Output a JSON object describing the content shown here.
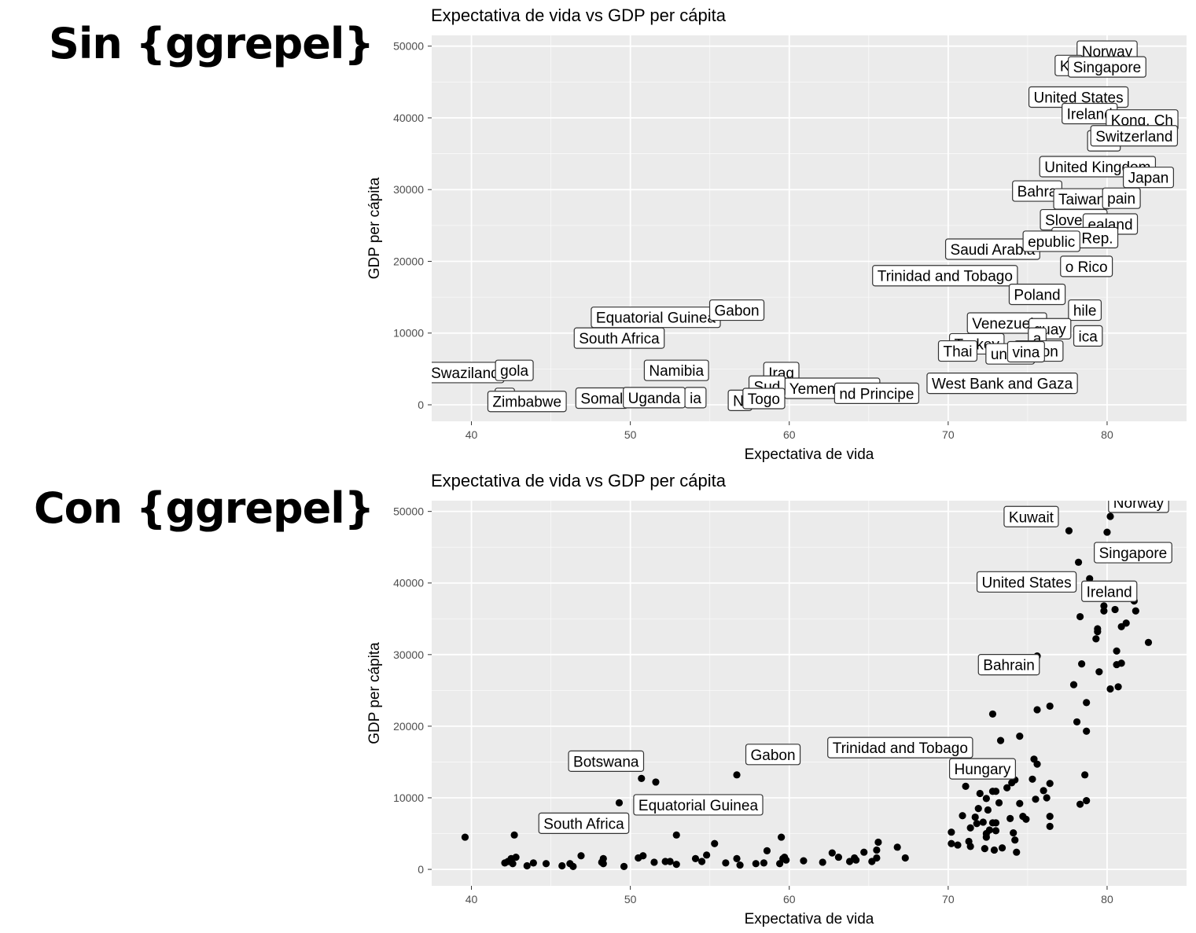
{
  "headings": {
    "top": "Sin {ggrepel}",
    "bottom": "Con {ggrepel}"
  },
  "colors": {
    "panel": "#ebebeb",
    "grid": "#ffffff",
    "point": "#000000",
    "label_border": "#333333",
    "text": "#000000",
    "tick_text": "#4d4d4d"
  },
  "chart_data": [
    {
      "type": "scatter",
      "title": "Expectativa de vida vs GDP per cápita",
      "xlabel": "Expectativa de vida",
      "ylabel": "GDP per cápita",
      "xlim": [
        37.5,
        85
      ],
      "ylim": [
        -2300,
        51500
      ],
      "x_ticks": [
        40,
        50,
        60,
        70,
        80
      ],
      "x_tick_labels": [
        "40",
        "50",
        "60",
        "70",
        "80"
      ],
      "y_ticks": [
        0,
        10000,
        20000,
        30000,
        40000,
        50000
      ],
      "y_tick_labels": [
        "0",
        "10000",
        "20000",
        "30000",
        "40000",
        "50000"
      ],
      "grid": true,
      "show_points": false,
      "labels": [
        {
          "text": "Norway",
          "x": 80,
          "y": 49300
        },
        {
          "text": "Ku",
          "x": 77.6,
          "y": 47300
        },
        {
          "text": "Singapore",
          "x": 80,
          "y": 47100
        },
        {
          "text": "United States",
          "x": 78.2,
          "y": 42900
        },
        {
          "text": "Ireland",
          "x": 78.9,
          "y": 40600
        },
        {
          "text": "Kong, Ch",
          "x": 82.2,
          "y": 39700
        },
        {
          "text": "Net",
          "x": 79.8,
          "y": 36800
        },
        {
          "text": "Switzerland",
          "x": 81.7,
          "y": 37500
        },
        {
          "text": "United Kingdom",
          "x": 79.4,
          "y": 33200
        },
        {
          "text": "Japan",
          "x": 82.6,
          "y": 31700
        },
        {
          "text": "Bahra",
          "x": 75.6,
          "y": 29800
        },
        {
          "text": "Taiwan",
          "x": 78.4,
          "y": 28700
        },
        {
          "text": "pain",
          "x": 80.9,
          "y": 28800
        },
        {
          "text": "Slovenia",
          "x": 77.9,
          "y": 25800
        },
        {
          "text": "ealand",
          "x": 80.2,
          "y": 25200
        },
        {
          "text": "ea, Rep.",
          "x": 78.6,
          "y": 23300
        },
        {
          "text": "Saudi Arabia",
          "x": 72.8,
          "y": 21700
        },
        {
          "text": "epublic",
          "x": 76.5,
          "y": 22800
        },
        {
          "text": "o Rico",
          "x": 78.7,
          "y": 19300
        },
        {
          "text": "Trinidad and Tobago",
          "x": 69.8,
          "y": 18000
        },
        {
          "text": "Poland",
          "x": 75.6,
          "y": 15400
        },
        {
          "text": "hile",
          "x": 78.6,
          "y": 13200
        },
        {
          "text": "Equatorial Guinea",
          "x": 51.6,
          "y": 12200
        },
        {
          "text": "Gabon",
          "x": 56.7,
          "y": 13200
        },
        {
          "text": "Venezuela",
          "x": 73.7,
          "y": 11400
        },
        {
          "text": "guay",
          "x": 76.4,
          "y": 10600
        },
        {
          "text": "ica",
          "x": 78.8,
          "y": 9600
        },
        {
          "text": "South Africa",
          "x": 49.3,
          "y": 9300
        },
        {
          "text": "Turkey",
          "x": 71.8,
          "y": 8500
        },
        {
          "text": "a",
          "x": 75.6,
          "y": 9300
        },
        {
          "text": "Union",
          "x": 75.7,
          "y": 7500
        },
        {
          "text": "Thai",
          "x": 70.6,
          "y": 7500
        },
        {
          "text": "unisia",
          "x": 73.9,
          "y": 7100
        },
        {
          "text": "vina",
          "x": 74.9,
          "y": 7400
        },
        {
          "text": "Namibia",
          "x": 52.9,
          "y": 4800
        },
        {
          "text": "Iraq",
          "x": 59.5,
          "y": 4500
        },
        {
          "text": "Swaziland",
          "x": 39.6,
          "y": 4500
        },
        {
          "text": "gola",
          "x": 42.7,
          "y": 4800
        },
        {
          "text": "West Bank and Gaza",
          "x": 73.4,
          "y": 3000
        },
        {
          "text": "Yemen, Rep.",
          "x": 62.7,
          "y": 2300
        },
        {
          "text": "nd Principe",
          "x": 65.5,
          "y": 1600
        },
        {
          "text": "S",
          "x": 42.1,
          "y": 900
        },
        {
          "text": "Zimbabwe",
          "x": 43.5,
          "y": 470
        },
        {
          "text": "Somal",
          "x": 48.2,
          "y": 930
        },
        {
          "text": "Uganda",
          "x": 51.5,
          "y": 1000
        },
        {
          "text": "ia",
          "x": 54.1,
          "y": 1000
        },
        {
          "text": "Sud",
          "x": 58.6,
          "y": 2600
        },
        {
          "text": "Ni",
          "x": 56.9,
          "y": 620
        },
        {
          "text": "Togo",
          "x": 58.4,
          "y": 880
        }
      ]
    },
    {
      "type": "scatter",
      "title": "Expectativa de vida vs GDP per cápita",
      "xlabel": "Expectativa de vida",
      "ylabel": "GDP per cápita",
      "xlim": [
        37.5,
        85
      ],
      "ylim": [
        -2300,
        51500
      ],
      "x_ticks": [
        40,
        50,
        60,
        70,
        80
      ],
      "x_tick_labels": [
        "40",
        "50",
        "60",
        "70",
        "80"
      ],
      "y_ticks": [
        0,
        10000,
        20000,
        30000,
        40000,
        50000
      ],
      "y_tick_labels": [
        "0",
        "10000",
        "20000",
        "30000",
        "40000",
        "50000"
      ],
      "grid": true,
      "show_points": true,
      "points": [
        [
          39.6,
          4500
        ],
        [
          42.1,
          900
        ],
        [
          42.3,
          1100
        ],
        [
          42.5,
          1500
        ],
        [
          42.6,
          800
        ],
        [
          42.7,
          4800
        ],
        [
          42.8,
          1700
        ],
        [
          43.5,
          500
        ],
        [
          43.9,
          900
        ],
        [
          44.7,
          800
        ],
        [
          45.7,
          500
        ],
        [
          46.2,
          800
        ],
        [
          46.4,
          400
        ],
        [
          46.9,
          1900
        ],
        [
          48.2,
          1000
        ],
        [
          48.3,
          1500
        ],
        [
          48.3,
          800
        ],
        [
          49.3,
          9300
        ],
        [
          49.6,
          400
        ],
        [
          50.5,
          1600
        ],
        [
          50.7,
          12700
        ],
        [
          50.8,
          1900
        ],
        [
          51.5,
          1000
        ],
        [
          51.6,
          12200
        ],
        [
          52.2,
          1100
        ],
        [
          52.5,
          1100
        ],
        [
          52.9,
          4800
        ],
        [
          52.9,
          700
        ],
        [
          54.1,
          1500
        ],
        [
          54.5,
          1100
        ],
        [
          54.8,
          2000
        ],
        [
          55.3,
          3600
        ],
        [
          56.0,
          900
        ],
        [
          56.7,
          1500
        ],
        [
          56.7,
          13200
        ],
        [
          56.9,
          600
        ],
        [
          57.9,
          800
        ],
        [
          58.4,
          900
        ],
        [
          58.6,
          2600
        ],
        [
          59.4,
          800
        ],
        [
          59.5,
          4500
        ],
        [
          59.6,
          1500
        ],
        [
          59.7,
          1700
        ],
        [
          59.8,
          1300
        ],
        [
          60.9,
          1200
        ],
        [
          62.1,
          1000
        ],
        [
          62.7,
          2300
        ],
        [
          63.1,
          1700
        ],
        [
          63.8,
          1100
        ],
        [
          64.1,
          1600
        ],
        [
          64.2,
          1300
        ],
        [
          64.7,
          2400
        ],
        [
          65.2,
          1100
        ],
        [
          65.5,
          1600
        ],
        [
          65.5,
          2700
        ],
        [
          65.6,
          3800
        ],
        [
          66.8,
          3100
        ],
        [
          67.3,
          1600
        ],
        [
          69.8,
          18000
        ],
        [
          70.2,
          5200
        ],
        [
          70.2,
          3600
        ],
        [
          70.6,
          3400
        ],
        [
          70.9,
          7500
        ],
        [
          71.1,
          11600
        ],
        [
          71.3,
          3900
        ],
        [
          71.4,
          5800
        ],
        [
          71.4,
          3200
        ],
        [
          71.7,
          7300
        ],
        [
          71.8,
          6400
        ],
        [
          71.9,
          8500
        ],
        [
          72.0,
          10600
        ],
        [
          72.2,
          6600
        ],
        [
          72.3,
          2900
        ],
        [
          72.4,
          5000
        ],
        [
          72.4,
          4500
        ],
        [
          72.4,
          9900
        ],
        [
          72.5,
          8300
        ],
        [
          72.6,
          5500
        ],
        [
          72.8,
          21700
        ],
        [
          72.8,
          6500
        ],
        [
          72.8,
          10900
        ],
        [
          72.9,
          2700
        ],
        [
          73.0,
          10900
        ],
        [
          73.0,
          5400
        ],
        [
          73.0,
          6500
        ],
        [
          73.2,
          9300
        ],
        [
          73.3,
          18000
        ],
        [
          73.4,
          3000
        ],
        [
          73.7,
          11400
        ],
        [
          73.9,
          7100
        ],
        [
          74.0,
          12100
        ],
        [
          74.1,
          5100
        ],
        [
          74.2,
          12500
        ],
        [
          74.2,
          4100
        ],
        [
          74.3,
          2400
        ],
        [
          74.5,
          9200
        ],
        [
          74.5,
          18600
        ],
        [
          74.7,
          7400
        ],
        [
          74.9,
          7000
        ],
        [
          75.3,
          12600
        ],
        [
          75.4,
          15400
        ],
        [
          75.5,
          9800
        ],
        [
          75.6,
          22300
        ],
        [
          75.6,
          14700
        ],
        [
          75.6,
          29800
        ],
        [
          76.0,
          11000
        ],
        [
          76.2,
          10000
        ],
        [
          76.4,
          12000
        ],
        [
          76.4,
          22800
        ],
        [
          76.4,
          7400
        ],
        [
          76.4,
          6000
        ],
        [
          77.6,
          47300
        ],
        [
          77.9,
          25800
        ],
        [
          78.1,
          20600
        ],
        [
          78.2,
          42900
        ],
        [
          78.3,
          9100
        ],
        [
          78.3,
          35300
        ],
        [
          78.4,
          28700
        ],
        [
          78.6,
          13200
        ],
        [
          78.7,
          19300
        ],
        [
          78.7,
          23300
        ],
        [
          78.7,
          9600
        ],
        [
          78.9,
          40600
        ],
        [
          79.3,
          32200
        ],
        [
          79.4,
          33200
        ],
        [
          79.4,
          33600
        ],
        [
          79.5,
          27600
        ],
        [
          79.8,
          36100
        ],
        [
          79.8,
          36800
        ],
        [
          80.0,
          47100
        ],
        [
          80.2,
          49300
        ],
        [
          80.2,
          25200
        ],
        [
          80.5,
          36300
        ],
        [
          80.6,
          28600
        ],
        [
          80.6,
          30500
        ],
        [
          80.7,
          25500
        ],
        [
          80.7,
          39700
        ],
        [
          80.9,
          28800
        ],
        [
          80.9,
          33900
        ],
        [
          81.2,
          34400
        ],
        [
          81.7,
          37500
        ],
        [
          81.8,
          36100
        ],
        [
          82.6,
          31700
        ]
      ],
      "labels": [
        {
          "text": "Kuwait",
          "x": 77.6,
          "y": 47300
        },
        {
          "text": "Norway",
          "x": 80.2,
          "y": 49300
        },
        {
          "text": "United States",
          "x": 78.2,
          "y": 42900
        },
        {
          "text": "Singapore",
          "x": 80.0,
          "y": 47100
        },
        {
          "text": "Ireland",
          "x": 78.9,
          "y": 40600
        },
        {
          "text": "Bahrain",
          "x": 75.6,
          "y": 29800
        },
        {
          "text": "Trinidad and Tobago",
          "x": 69.8,
          "y": 18000
        },
        {
          "text": "Hungary",
          "x": 73.0,
          "y": 18000
        },
        {
          "text": "Botswana",
          "x": 50.7,
          "y": 12700
        },
        {
          "text": "Gabon",
          "x": 56.7,
          "y": 13200
        },
        {
          "text": "Equatorial Guinea",
          "x": 51.6,
          "y": 12200
        },
        {
          "text": "South Africa",
          "x": 49.3,
          "y": 9300
        }
      ]
    }
  ]
}
